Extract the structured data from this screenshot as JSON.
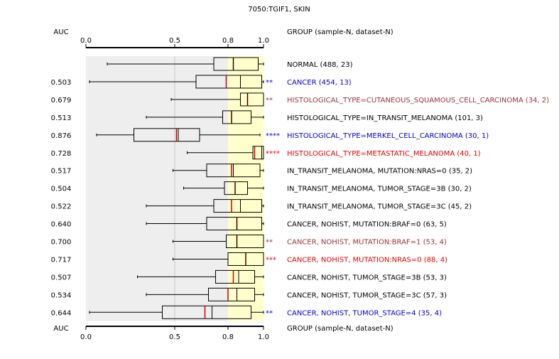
{
  "chart_data": {
    "type": "box",
    "title": "7050:TGIF1, SKIN",
    "auc_header": "AUC",
    "group_header": "GROUP (sample-N, dataset-N)",
    "xlim": [
      0.0,
      1.0
    ],
    "ticks": [
      "0.0",
      "0.5",
      "0.8",
      "1.0"
    ],
    "tick_values": [
      0.0,
      0.5,
      0.8,
      1.0
    ],
    "colors": {
      "black": "#000000",
      "blue": "#0000cc",
      "brown": "#993333",
      "red": "#dd0000",
      "background_band": "#eeeeee",
      "highlight_band": "#ffffcc",
      "median": "#cc0000"
    },
    "rows": [
      {
        "auc": "",
        "label": "NORMAL (488, 23)",
        "color": "black",
        "stars": "",
        "whisker_low": 0.12,
        "q1": 0.72,
        "median": 0.83,
        "q3": 0.97,
        "whisker_high": 1.0,
        "mean": 0.83
      },
      {
        "auc": "0.503",
        "label": "CANCER (454, 13)",
        "color": "blue",
        "stars": "**",
        "whisker_low": 0.02,
        "q1": 0.62,
        "median": 0.79,
        "q3": 0.99,
        "whisker_high": 1.0,
        "mean": 0.87
      },
      {
        "auc": "0.679",
        "label": "HISTOLOGICAL_TYPE=CUTANEOUS_SQUAMOUS_CELL_CARCINOMA (34, 2)",
        "color": "brown",
        "stars": "**",
        "whisker_low": 0.48,
        "q1": 0.87,
        "median": 0.91,
        "q3": 1.0,
        "whisker_high": 1.0,
        "mean": 0.91
      },
      {
        "auc": "0.513",
        "label": "HISTOLOGICAL_TYPE=IN_TRANSIT_MELANOMA (101, 3)",
        "color": "black",
        "stars": "",
        "whisker_low": 0.34,
        "q1": 0.77,
        "median": 0.82,
        "q3": 0.93,
        "whisker_high": 1.0,
        "mean": 0.82
      },
      {
        "auc": "0.876",
        "label": "HISTOLOGICAL_TYPE=MERKEL_CELL_CARCINOMA (30, 1)",
        "color": "blue",
        "stars": "****",
        "whisker_low": 0.06,
        "q1": 0.27,
        "median": 0.51,
        "q3": 0.64,
        "whisker_high": 0.98,
        "mean": 0.52
      },
      {
        "auc": "0.728",
        "label": "HISTOLOGICAL_TYPE=METASTATIC_MELANOMA (40, 1)",
        "color": "red",
        "stars": "****",
        "whisker_low": 0.57,
        "q1": 0.94,
        "median": 0.95,
        "q3": 1.0,
        "whisker_high": 1.0,
        "mean": 0.99
      },
      {
        "auc": "0.517",
        "label": "IN_TRANSIT_MELANOMA, MUTATION:NRAS=0 (35, 2)",
        "color": "black",
        "stars": "",
        "whisker_low": 0.49,
        "q1": 0.68,
        "median": 0.82,
        "q3": 0.98,
        "whisker_high": 1.0,
        "mean": 0.83
      },
      {
        "auc": "0.504",
        "label": "IN_TRANSIT_MELANOMA, TUMOR_STAGE=3B (30, 2)",
        "color": "black",
        "stars": "",
        "whisker_low": 0.55,
        "q1": 0.78,
        "median": 0.84,
        "q3": 0.91,
        "whisker_high": 1.0,
        "mean": 0.84
      },
      {
        "auc": "0.522",
        "label": "IN_TRANSIT_MELANOMA, TUMOR_STAGE=3C (45, 2)",
        "color": "black",
        "stars": "",
        "whisker_low": 0.34,
        "q1": 0.72,
        "median": 0.82,
        "q3": 0.99,
        "whisker_high": 1.0,
        "mean": 0.87
      },
      {
        "auc": "0.640",
        "label": "CANCER, NOHIST, MUTATION:BRAF=0 (63, 5)",
        "color": "black",
        "stars": "",
        "whisker_low": 0.34,
        "q1": 0.68,
        "median": 0.85,
        "q3": 0.99,
        "whisker_high": 1.0,
        "mean": 0.85
      },
      {
        "auc": "0.700",
        "label": "CANCER, NOHIST, MUTATION:BRAF=1 (53, 4)",
        "color": "brown",
        "stars": "**",
        "whisker_low": 0.49,
        "q1": 0.79,
        "median": 0.85,
        "q3": 1.0,
        "whisker_high": 1.0,
        "mean": 0.85
      },
      {
        "auc": "0.717",
        "label": "CANCER, NOHIST, MUTATION:NRAS=0 (88, 4)",
        "color": "red",
        "stars": "***",
        "whisker_low": 0.49,
        "q1": 0.8,
        "median": 0.9,
        "q3": 1.0,
        "whisker_high": 1.0,
        "mean": 0.9
      },
      {
        "auc": "0.507",
        "label": "CANCER, NOHIST, TUMOR_STAGE=3B (53, 3)",
        "color": "black",
        "stars": "",
        "whisker_low": 0.29,
        "q1": 0.73,
        "median": 0.83,
        "q3": 0.95,
        "whisker_high": 1.0,
        "mean": 0.86
      },
      {
        "auc": "0.534",
        "label": "CANCER, NOHIST, TUMOR_STAGE=3C (57, 3)",
        "color": "black",
        "stars": "",
        "whisker_low": 0.34,
        "q1": 0.69,
        "median": 0.8,
        "q3": 0.95,
        "whisker_high": 1.0,
        "mean": 0.85
      },
      {
        "auc": "0.644",
        "label": "CANCER, NOHIST, TUMOR_STAGE=4 (35, 4)",
        "color": "blue",
        "stars": "**",
        "whisker_low": 0.02,
        "q1": 0.43,
        "median": 0.67,
        "q3": 0.93,
        "whisker_high": 1.0,
        "mean": 0.71
      }
    ]
  }
}
